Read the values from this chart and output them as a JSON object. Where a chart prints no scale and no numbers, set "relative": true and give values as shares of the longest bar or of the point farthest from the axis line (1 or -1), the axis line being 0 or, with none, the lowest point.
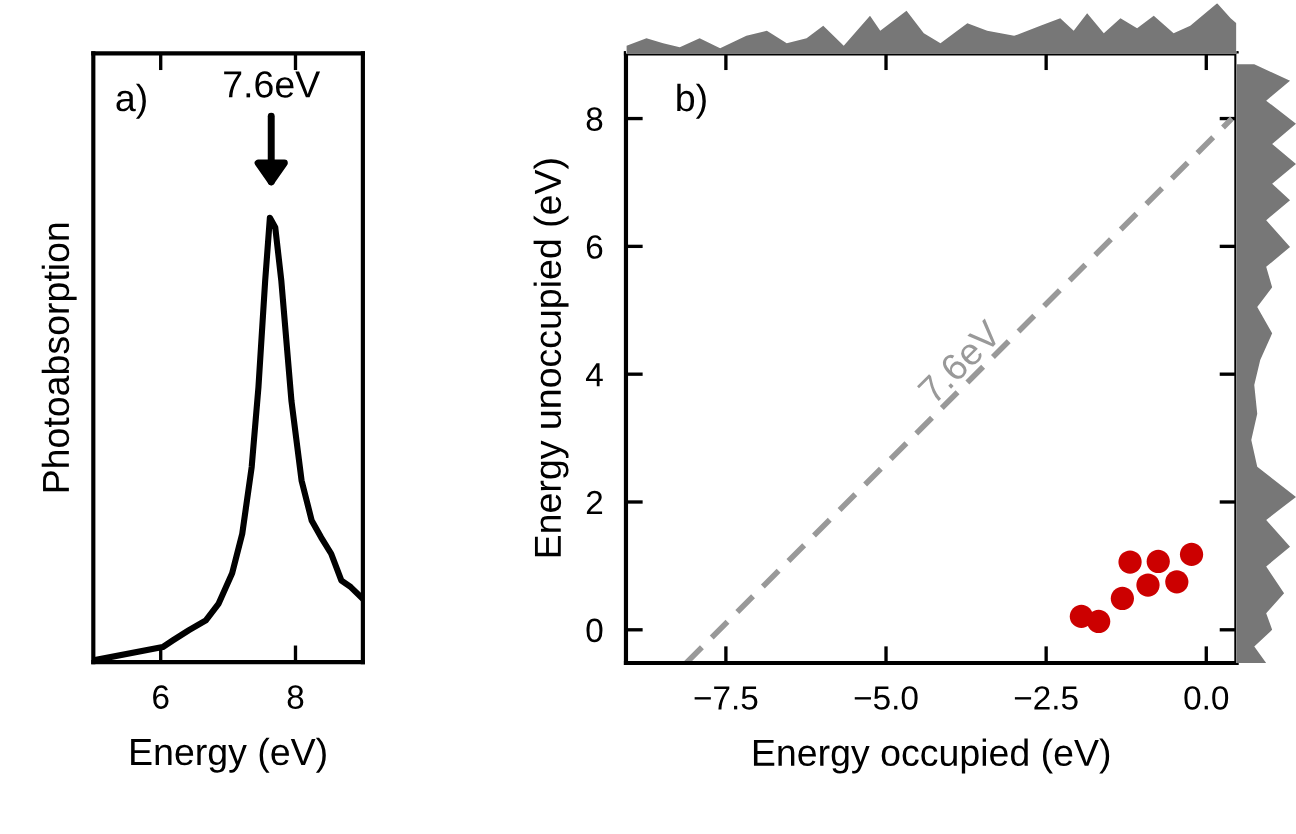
{
  "chart_data": [
    {
      "type": "line",
      "xlabel": "Energy (eV)",
      "ylabel": "Photoabsorption",
      "relative": true,
      "color": "#000000",
      "xlim": [
        5,
        9
      ],
      "xticks": [
        6,
        8
      ],
      "tick_labels": "x",
      "x": [
        5.0,
        6.03,
        6.18,
        6.42,
        6.67,
        6.86,
        7.06,
        7.21,
        7.35,
        7.45,
        7.55,
        7.62,
        7.7,
        7.79,
        7.94,
        8.09,
        8.24,
        8.38,
        8.53,
        8.68,
        8.82,
        8.97
      ],
      "values": [
        0.004,
        0.034,
        0.049,
        0.072,
        0.094,
        0.132,
        0.2,
        0.289,
        0.439,
        0.618,
        0.858,
        1.0,
        0.978,
        0.858,
        0.588,
        0.409,
        0.319,
        0.281,
        0.244,
        0.184,
        0.169,
        0.147
      ],
      "annotations": [
        "a)",
        "7.6eV"
      ]
    },
    {
      "type": "scatter",
      "xlabel": "Energy occupied (eV)",
      "ylabel": "Energy unoccupied (eV)",
      "xlim": [
        -9.06,
        0.47
      ],
      "ylim": [
        -0.52,
        9.02
      ],
      "xticks": [
        {
          "value": -7.5,
          "label": "−7.5"
        },
        {
          "value": -5.0,
          "label": "−5.0"
        },
        {
          "value": -2.5,
          "label": "−2.5"
        },
        {
          "value": 0.0,
          "label": "0.0"
        }
      ],
      "yticks": [
        0,
        2,
        4,
        6,
        8
      ],
      "series": [
        {
          "type": "scatter",
          "color": "#cc0000",
          "marker": "circle",
          "x": [
            -1.68,
            -1.95,
            -1.31,
            -0.91,
            -0.75,
            -0.46,
            -0.23,
            -1.19
          ],
          "values": [
            0.13,
            0.21,
            0.49,
            0.7,
            1.07,
            0.75,
            1.18,
            1.06
          ]
        },
        {
          "type": "line",
          "color": "#999999",
          "line_style": "dashed",
          "x": [
            -8.12,
            0.4
          ],
          "values": [
            -0.52,
            8.0
          ]
        }
      ],
      "annotations": [
        "b)",
        "7.6eV"
      ]
    },
    {
      "type": "area",
      "relative": true,
      "color": "#777777",
      "tick_labels": false,
      "xlim": [
        -9.06,
        0.47
      ],
      "x": [
        -9.05,
        -8.74,
        -8.48,
        -8.22,
        -7.91,
        -7.59,
        -7.18,
        -6.86,
        -6.55,
        -6.24,
        -5.98,
        -5.66,
        -5.25,
        -5.09,
        -4.68,
        -4.41,
        -4.15,
        -3.73,
        -3.42,
        -3.0,
        -2.59,
        -2.28,
        -2.07,
        -1.86,
        -1.6,
        -1.34,
        -1.08,
        -0.82,
        -0.51,
        -0.25,
        0.17,
        0.38,
        0.47
      ],
      "values": [
        0.15,
        0.3,
        0.2,
        0.12,
        0.3,
        0.1,
        0.35,
        0.45,
        0.2,
        0.3,
        0.55,
        0.15,
        0.75,
        0.45,
        0.85,
        0.4,
        0.2,
        0.6,
        0.45,
        0.35,
        0.55,
        0.7,
        0.45,
        0.8,
        0.4,
        0.7,
        0.5,
        0.75,
        0.4,
        0.55,
        1.0,
        0.7,
        0.6
      ]
    },
    {
      "type": "area",
      "orientation": "horizontal",
      "relative": true,
      "color": "#777777",
      "tick_labels": false,
      "ylim": [
        -0.52,
        9.02
      ],
      "x": [
        8.85,
        8.59,
        8.28,
        7.92,
        7.6,
        7.29,
        6.98,
        6.72,
        6.41,
        5.99,
        5.68,
        5.36,
        5.05,
        4.64,
        4.22,
        3.83,
        3.38,
        2.97,
        2.55,
        2.08,
        1.72,
        1.3,
        0.99,
        0.57,
        0.26,
        0.0,
        -0.26,
        -0.52
      ],
      "values": [
        0.3,
        0.9,
        0.5,
        1.0,
        0.6,
        1.0,
        0.6,
        0.9,
        0.5,
        0.9,
        0.5,
        0.6,
        0.35,
        0.6,
        0.4,
        0.3,
        0.35,
        0.25,
        0.35,
        1.0,
        0.5,
        0.9,
        0.5,
        0.8,
        0.5,
        0.6,
        0.3,
        0.5
      ]
    }
  ]
}
